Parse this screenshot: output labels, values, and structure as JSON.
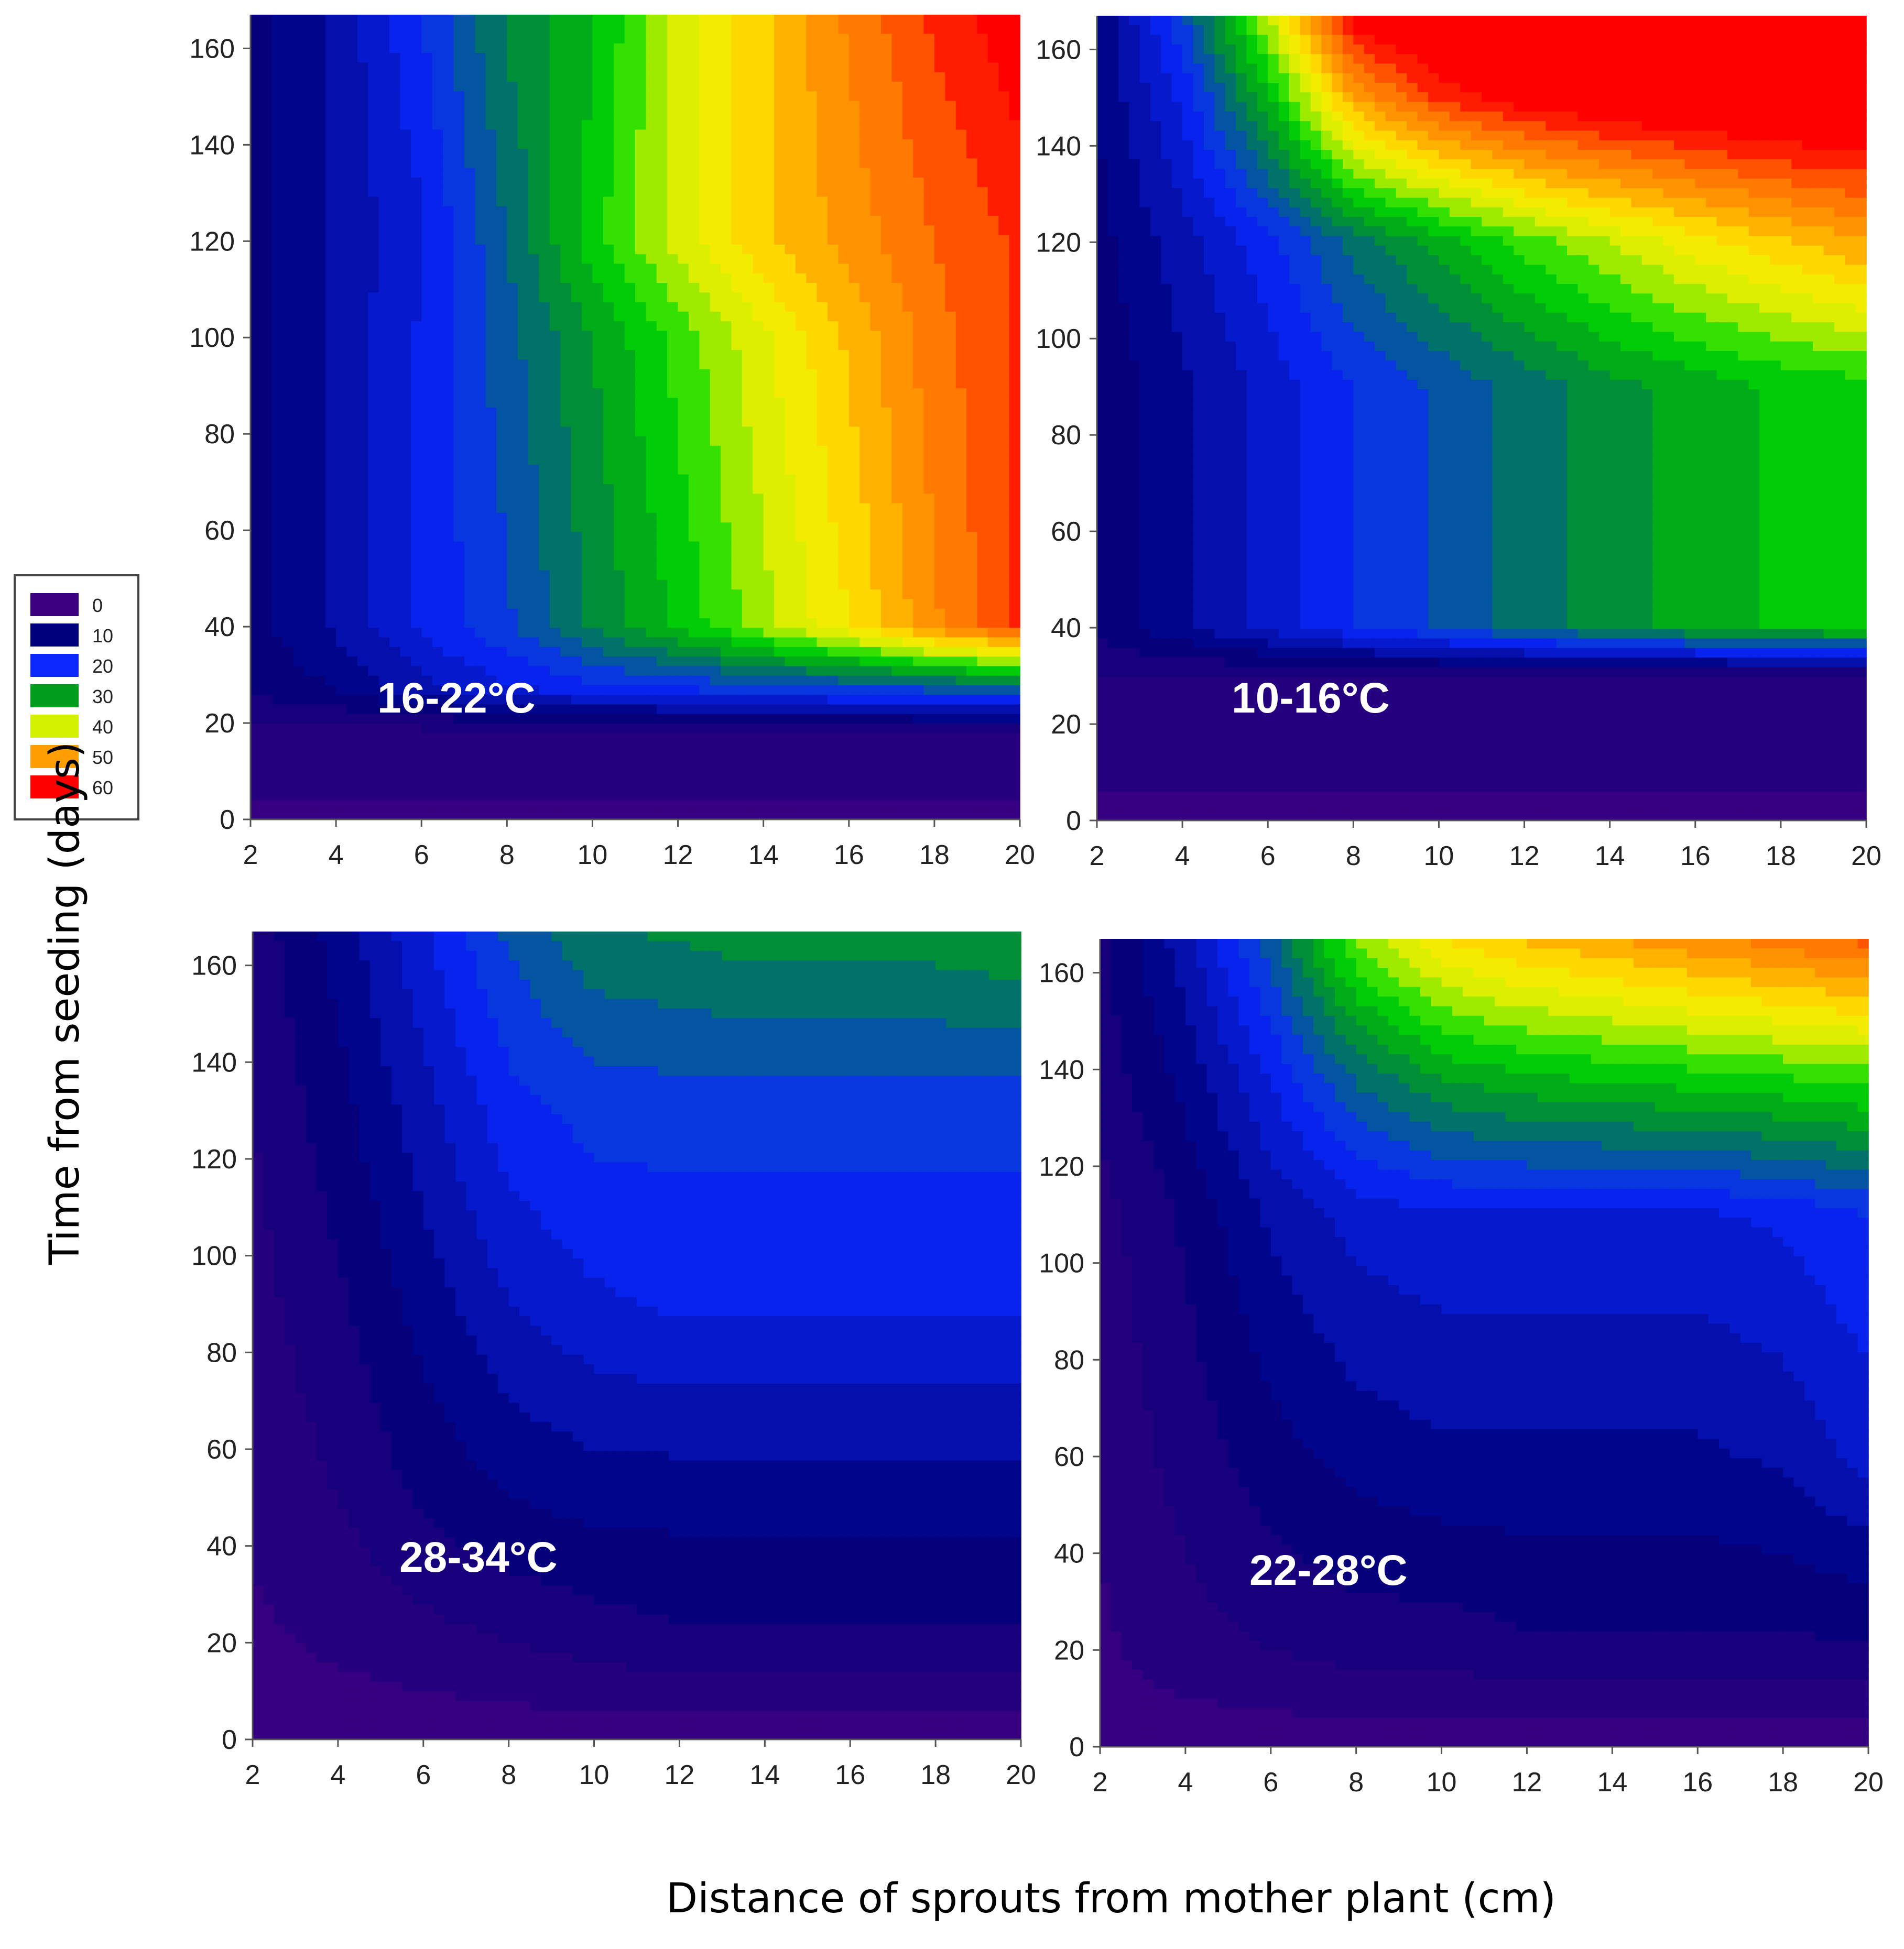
{
  "figure": {
    "ylabel": "Time from seeding (days)",
    "xlabel": "Distance of sprouts from mother plant (cm)"
  },
  "chart_data": {
    "type": "heatmap",
    "subtype": "filled-contour",
    "x_ticks": [
      2,
      4,
      6,
      8,
      10,
      12,
      14,
      16,
      18,
      20
    ],
    "y_ticks": [
      0,
      20,
      40,
      60,
      80,
      100,
      120,
      140,
      160
    ],
    "xlim": [
      2,
      20
    ],
    "ylim": [
      0,
      167
    ],
    "legend": {
      "placement": "left-middle",
      "entries": [
        {
          "label": "0",
          "color": "#3b0080"
        },
        {
          "label": "10",
          "color": "#00007a"
        },
        {
          "label": "20",
          "color": "#0a28ff"
        },
        {
          "label": "30",
          "color": "#009c1e"
        },
        {
          "label": "40",
          "color": "#d2f000"
        },
        {
          "label": "50",
          "color": "#ff9e00"
        },
        {
          "label": "60",
          "color": "#ff0000"
        }
      ],
      "levels": [
        0,
        10,
        20,
        30,
        40,
        50,
        60
      ]
    },
    "panels": [
      {
        "label": "16-22°C",
        "description_of_surface": "values near 0 below ~20 days; rises sharply after ~25 days; increases with distance to ~55-60 at 20 cm",
        "rows": [
          {
            "y": 0,
            "values": [
              2,
              2,
              2,
              2,
              2,
              2,
              2,
              2,
              2,
              2
            ]
          },
          {
            "y": 18,
            "values": [
              4,
              4,
              4,
              4,
              4,
              4,
              4,
              4,
              4,
              4
            ]
          },
          {
            "y": 27,
            "values": [
              8,
              10,
              14,
              17,
              19,
              20,
              21,
              22,
              23,
              24
            ]
          },
          {
            "y": 40,
            "values": [
              9,
              13,
              18,
              22,
              28,
              33,
              39,
              45,
              52,
              58
            ]
          },
          {
            "y": 100,
            "values": [
              9,
              13,
              18,
              24,
              30,
              36,
              42,
              48,
              54,
              58
            ]
          },
          {
            "y": 120,
            "values": [
              9,
              13,
              17,
              25,
              34,
              41,
              47,
              51,
              55,
              58
            ]
          },
          {
            "y": 167,
            "values": [
              9,
              13,
              20,
              28,
              32,
              41,
              47,
              53,
              58,
              62
            ]
          }
        ]
      },
      {
        "label": "10-16°C",
        "description_of_surface": "values near 0 below ~35 days; plateau of 20-30 between 40 and 90 days; red (≥60) region at top-right after ~130 days",
        "rows": [
          {
            "y": 0,
            "values": [
              2,
              2,
              2,
              2,
              2,
              2,
              2,
              2,
              2,
              2
            ]
          },
          {
            "y": 30,
            "values": [
              5,
              5,
              5,
              5,
              5,
              5,
              5,
              5,
              5,
              5
            ]
          },
          {
            "y": 40,
            "values": [
              8,
              12,
              16,
              20,
              23,
              26,
              29,
              31,
              33,
              34
            ]
          },
          {
            "y": 90,
            "values": [
              8,
              12,
              16,
              20,
              23,
              26,
              29,
              31,
              33,
              34
            ]
          },
          {
            "y": 120,
            "values": [
              9,
              14,
              19,
              26,
              31,
              36,
              40,
              44,
              47,
              50
            ]
          },
          {
            "y": 150,
            "values": [
              10,
              18,
              32,
              50,
              58,
              62,
              64,
              65,
              66,
              66
            ]
          },
          {
            "y": 167,
            "values": [
              10,
              22,
              40,
              62,
              66,
              68,
              68,
              68,
              68,
              68
            ]
          }
        ]
      },
      {
        "label": "28-34°C",
        "description_of_surface": "mostly low values (0-20); slight increase to ~25-30 near the top right",
        "rows": [
          {
            "y": 0,
            "values": [
              1,
              1,
              1,
              1,
              1,
              1,
              1,
              1,
              1,
              1
            ]
          },
          {
            "y": 20,
            "values": [
              2,
              3,
              4,
              5,
              6,
              7,
              7,
              7,
              7,
              7
            ]
          },
          {
            "y": 50,
            "values": [
              3,
              5,
              8,
              10,
              11,
              11,
              11,
              11,
              11,
              11
            ]
          },
          {
            "y": 90,
            "values": [
              4,
              7,
              11,
              15,
              17,
              18,
              18,
              18,
              18,
              18
            ]
          },
          {
            "y": 130,
            "values": [
              5,
              9,
              14,
              19,
              21,
              21,
              21,
              21,
              21,
              21
            ]
          },
          {
            "y": 167,
            "values": [
              6,
              11,
              17,
              23,
              27,
              28,
              29,
              29,
              29,
              30
            ]
          }
        ]
      },
      {
        "label": "22-28°C",
        "description_of_surface": "low values (0-15) below ~110 days; increases after ~120 days to ~50-55 at top right",
        "rows": [
          {
            "y": 0,
            "values": [
              1,
              1,
              1,
              1,
              1,
              1,
              1,
              1,
              1,
              1
            ]
          },
          {
            "y": 20,
            "values": [
              2,
              4,
              5,
              6,
              6,
              7,
              7,
              7,
              7,
              7
            ]
          },
          {
            "y": 60,
            "values": [
              3,
              6,
              9,
              11,
              12,
              12,
              12,
              12,
              13,
              16
            ]
          },
          {
            "y": 110,
            "values": [
              4,
              8,
              13,
              16,
              17,
              17,
              17,
              17,
              18,
              20
            ]
          },
          {
            "y": 140,
            "values": [
              6,
              11,
              18,
              26,
              31,
              33,
              34,
              35,
              36,
              37
            ]
          },
          {
            "y": 167,
            "values": [
              7,
              14,
              24,
              38,
              45,
              48,
              50,
              52,
              54,
              56
            ]
          }
        ]
      }
    ]
  }
}
